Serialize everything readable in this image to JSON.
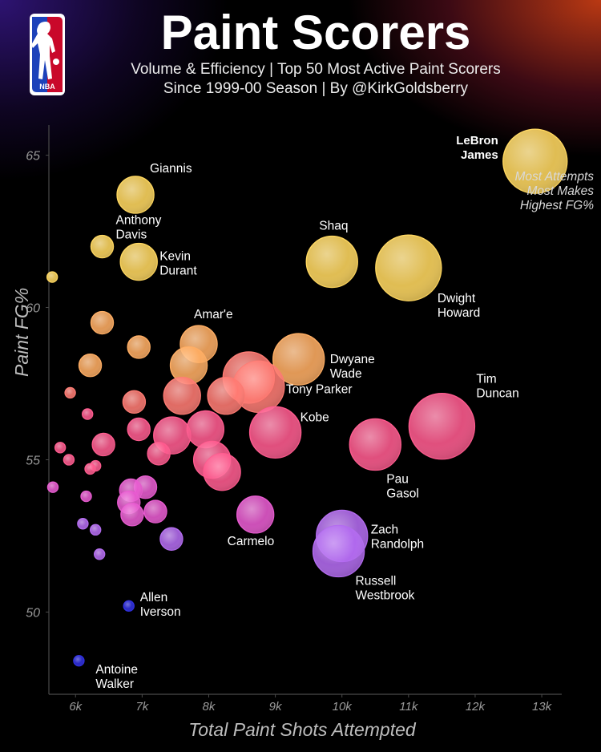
{
  "header": {
    "title": "Paint Scorers",
    "subtitle_line1": "Volume & Efficiency | Top 50 Most Active Paint Scorers",
    "subtitle_line2": "Since 1999-00 Season | By @KirkGoldsberry",
    "logo_text": "NBA"
  },
  "annotation": {
    "line1": "Most Attempts",
    "line2": "Most Makes",
    "line3": "Highest FG%"
  },
  "colors": {
    "yellow": "#ffd75e",
    "orange": "#ffad62",
    "coral": "#ff7a72",
    "pink": "#ff5a8e",
    "magenta": "#e85ad0",
    "violet": "#b36af0",
    "blue": "#2e2ee0"
  },
  "chart_data": {
    "type": "scatter",
    "xlabel": "Total Paint Shots Attempted",
    "ylabel": "Paint FG%",
    "xlim": [
      5600,
      13300
    ],
    "ylim": [
      47.3,
      66.2
    ],
    "x_ticks": [
      6000,
      7000,
      8000,
      9000,
      10000,
      11000,
      12000,
      13000
    ],
    "x_tick_labels": [
      "6k",
      "7k",
      "8k",
      "9k",
      "10k",
      "11k",
      "12k",
      "13k"
    ],
    "y_ticks": [
      50,
      55,
      60,
      65
    ],
    "y_tick_labels": [
      "50",
      "55",
      "60",
      "65"
    ],
    "size_encoding": "paint makes",
    "points": [
      {
        "x": 12900,
        "y": 64.8,
        "r": 40,
        "label": "LeBron James",
        "label_lines": [
          "LeBron",
          "James"
        ],
        "bold": true
      },
      {
        "x": 6900,
        "y": 63.7,
        "r": 23,
        "label": "Giannis",
        "label_lines": [
          "Giannis"
        ]
      },
      {
        "x": 6400,
        "y": 62.0,
        "r": 14,
        "label": "Anthony Davis",
        "label_lines": [
          "Anthony",
          "Davis"
        ]
      },
      {
        "x": 6950,
        "y": 61.5,
        "r": 23,
        "label": "Kevin Durant",
        "label_lines": [
          "Kevin",
          "Durant"
        ]
      },
      {
        "x": 5650,
        "y": 61.0,
        "r": 6.5,
        "label": ""
      },
      {
        "x": 9850,
        "y": 61.5,
        "r": 32,
        "label": "Shaq",
        "label_lines": [
          "Shaq"
        ]
      },
      {
        "x": 11000,
        "y": 61.3,
        "r": 41,
        "label": "Dwight Howard",
        "label_lines": [
          "Dwight",
          "Howard"
        ]
      },
      {
        "x": 6400,
        "y": 59.5,
        "r": 14,
        "label": ""
      },
      {
        "x": 7850,
        "y": 58.8,
        "r": 23,
        "label": "Amar'e",
        "label_lines": [
          "Amar'e"
        ]
      },
      {
        "x": 6950,
        "y": 58.7,
        "r": 14,
        "label": ""
      },
      {
        "x": 9350,
        "y": 58.3,
        "r": 32,
        "label": "Dwyane Wade",
        "label_lines": [
          "Dwyane",
          "Wade"
        ]
      },
      {
        "x": 7700,
        "y": 58.1,
        "r": 23,
        "label": ""
      },
      {
        "x": 6220,
        "y": 58.1,
        "r": 14,
        "label": ""
      },
      {
        "x": 8600,
        "y": 57.7,
        "r": 32,
        "label": ""
      },
      {
        "x": 8750,
        "y": 57.4,
        "r": 32,
        "label": "Tony Parker",
        "label_lines": [
          "Tony Parker"
        ]
      },
      {
        "x": 5920,
        "y": 57.2,
        "r": 6.5,
        "label": ""
      },
      {
        "x": 7600,
        "y": 57.1,
        "r": 23,
        "label": ""
      },
      {
        "x": 8260,
        "y": 57.1,
        "r": 23,
        "label": ""
      },
      {
        "x": 6880,
        "y": 56.9,
        "r": 14,
        "label": ""
      },
      {
        "x": 6180,
        "y": 56.5,
        "r": 6.5,
        "label": ""
      },
      {
        "x": 9000,
        "y": 55.9,
        "r": 32,
        "label": "Kobe",
        "label_lines": [
          "Kobe"
        ]
      },
      {
        "x": 11500,
        "y": 56.1,
        "r": 41,
        "label": "Tim Duncan",
        "label_lines": [
          "Tim",
          "Duncan"
        ]
      },
      {
        "x": 7950,
        "y": 56.0,
        "r": 23,
        "label": ""
      },
      {
        "x": 6950,
        "y": 56.0,
        "r": 14,
        "label": ""
      },
      {
        "x": 7450,
        "y": 55.8,
        "r": 23,
        "label": ""
      },
      {
        "x": 10500,
        "y": 55.5,
        "r": 32,
        "label": "Pau Gasol",
        "label_lines": [
          "Pau",
          "Gasol"
        ]
      },
      {
        "x": 6420,
        "y": 55.5,
        "r": 14,
        "label": ""
      },
      {
        "x": 5770,
        "y": 55.4,
        "r": 6.5,
        "label": ""
      },
      {
        "x": 7250,
        "y": 55.2,
        "r": 14,
        "label": ""
      },
      {
        "x": 8050,
        "y": 55.0,
        "r": 23,
        "label": ""
      },
      {
        "x": 5900,
        "y": 55.0,
        "r": 6.5,
        "label": ""
      },
      {
        "x": 6300,
        "y": 54.8,
        "r": 6.5,
        "label": ""
      },
      {
        "x": 6220,
        "y": 54.7,
        "r": 6.5,
        "label": ""
      },
      {
        "x": 8200,
        "y": 54.6,
        "r": 23,
        "label": ""
      },
      {
        "x": 5660,
        "y": 54.1,
        "r": 6.5,
        "label": ""
      },
      {
        "x": 7050,
        "y": 54.1,
        "r": 14,
        "label": ""
      },
      {
        "x": 6830,
        "y": 54.0,
        "r": 14,
        "label": ""
      },
      {
        "x": 6160,
        "y": 53.8,
        "r": 6.5,
        "label": ""
      },
      {
        "x": 6800,
        "y": 53.6,
        "r": 14,
        "label": ""
      },
      {
        "x": 7200,
        "y": 53.3,
        "r": 14,
        "label": ""
      },
      {
        "x": 6850,
        "y": 53.2,
        "r": 14,
        "label": ""
      },
      {
        "x": 8700,
        "y": 53.2,
        "r": 23,
        "label": "Carmelo",
        "label_lines": [
          "Carmelo"
        ]
      },
      {
        "x": 6110,
        "y": 52.9,
        "r": 6.5,
        "label": ""
      },
      {
        "x": 6300,
        "y": 52.7,
        "r": 6.5,
        "label": ""
      },
      {
        "x": 10000,
        "y": 52.5,
        "r": 32,
        "label": "Zach Randolph",
        "label_lines": [
          "Zach",
          "Randolph"
        ]
      },
      {
        "x": 7440,
        "y": 52.4,
        "r": 14,
        "label": ""
      },
      {
        "x": 9950,
        "y": 52.0,
        "r": 32,
        "label": "Russell Westbrook",
        "label_lines": [
          "Russell",
          "Westbrook"
        ]
      },
      {
        "x": 6360,
        "y": 51.9,
        "r": 6.5,
        "label": ""
      },
      {
        "x": 6800,
        "y": 50.2,
        "r": 6.5,
        "label": "Allen Iverson",
        "label_lines": [
          "Allen",
          "Iverson"
        ]
      },
      {
        "x": 6050,
        "y": 48.4,
        "r": 6.5,
        "label": "Antoine Walker",
        "label_lines": [
          "Antoine",
          "Walker"
        ]
      }
    ]
  }
}
